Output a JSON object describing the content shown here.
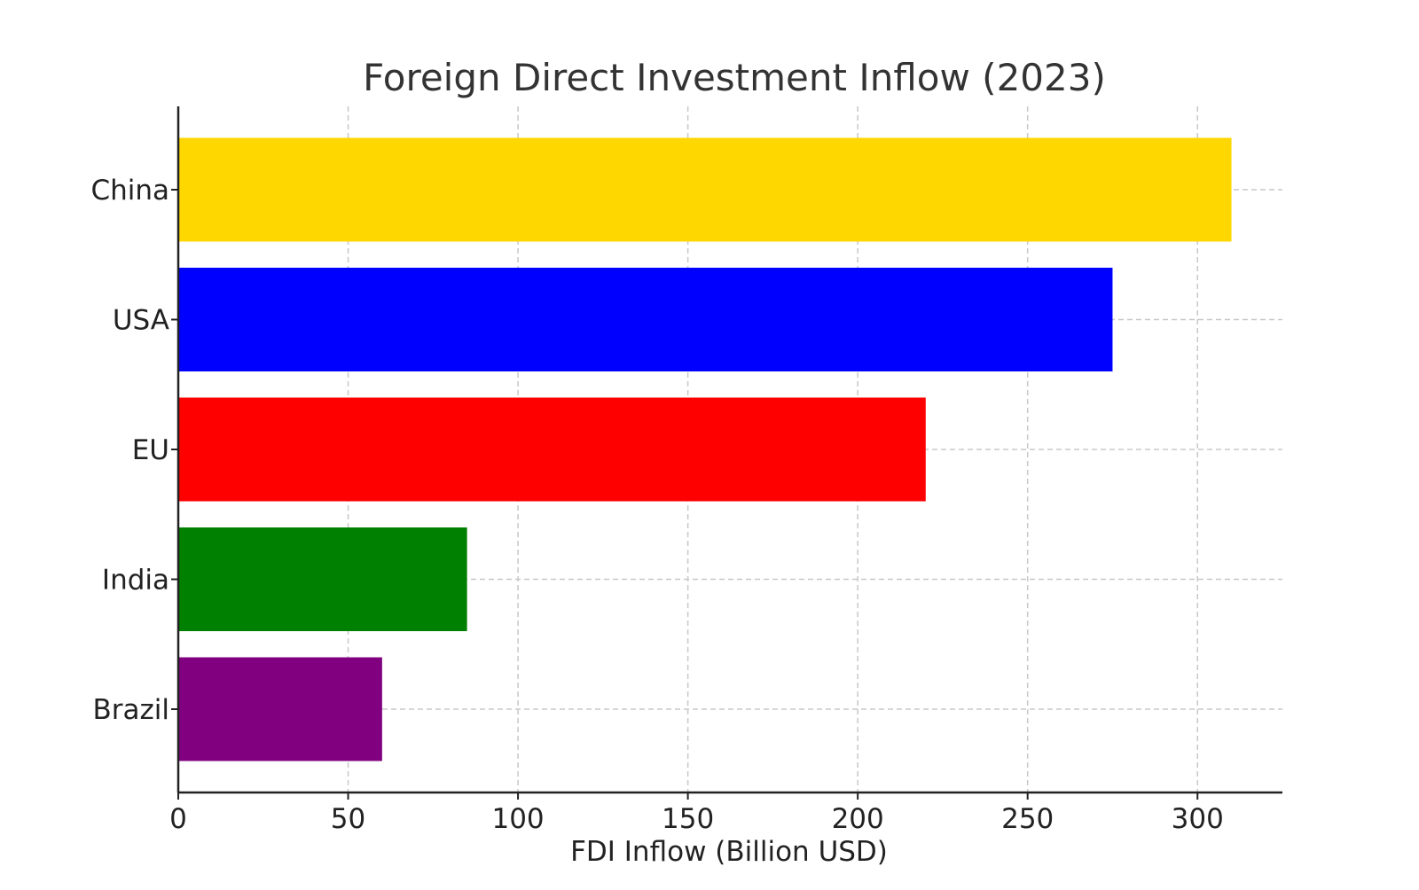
{
  "chart_data": {
    "type": "bar",
    "orientation": "horizontal",
    "title": "Foreign Direct Investment Inflow (2023)",
    "xlabel": "FDI Inflow (Billion USD)",
    "ylabel": "",
    "categories": [
      "China",
      "USA",
      "EU",
      "India",
      "Brazil"
    ],
    "values": [
      310,
      275,
      220,
      85,
      60
    ],
    "colors": [
      "#FFD700",
      "#0000FF",
      "#FF0000",
      "#008000",
      "#800080"
    ],
    "xlim": [
      0,
      325
    ],
    "xticks": [
      0,
      50,
      100,
      150,
      200,
      250,
      300
    ],
    "xtick_labels": [
      "0",
      "50",
      "100",
      "150",
      "200",
      "250",
      "300"
    ],
    "grid": true,
    "legend": "none"
  }
}
